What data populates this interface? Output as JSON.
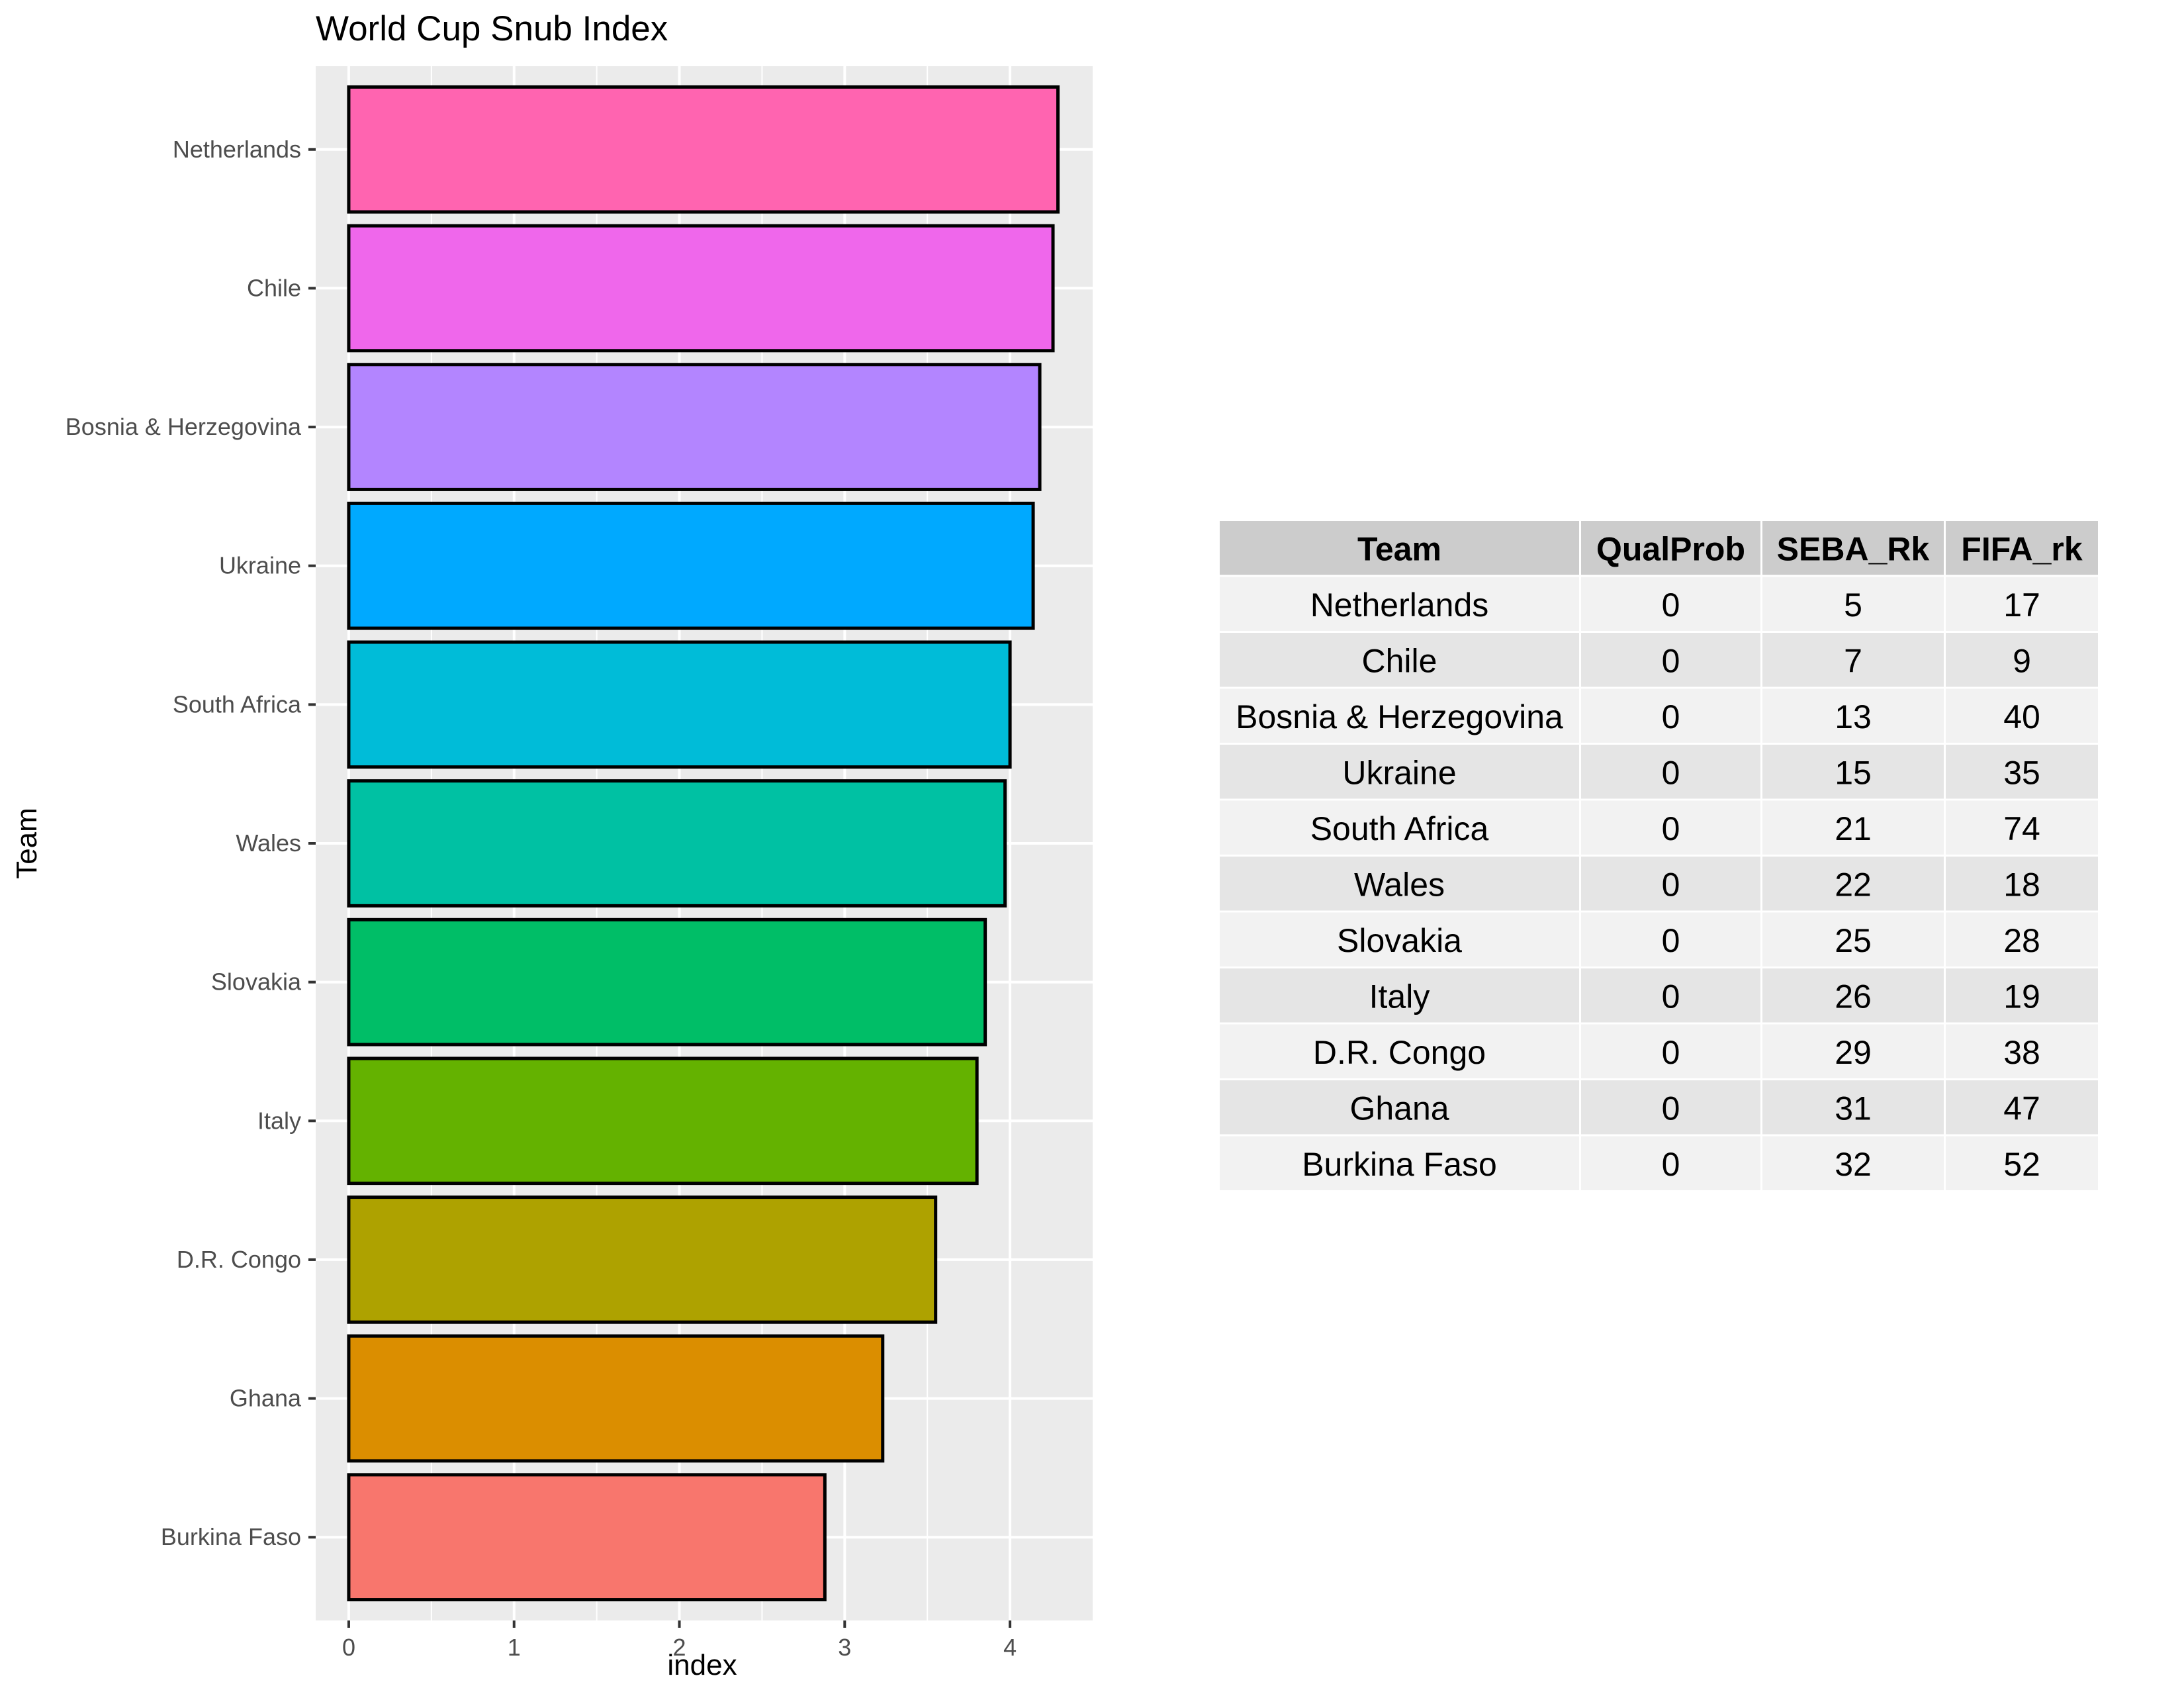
{
  "chart_data": {
    "type": "bar",
    "orientation": "horizontal",
    "title": "World Cup Snub Index",
    "xlabel": "index",
    "ylabel": "Team",
    "xlim": [
      -0.2,
      4.5
    ],
    "x_ticks": [
      0,
      1,
      2,
      3,
      4
    ],
    "grid": true,
    "legend": "none",
    "categories": [
      "Netherlands",
      "Chile",
      "Bosnia & Herzegovina",
      "Ukraine",
      "South Africa",
      "Wales",
      "Slovakia",
      "Italy",
      "D.R. Congo",
      "Ghana",
      "Burkina Faso"
    ],
    "values": [
      4.29,
      4.26,
      4.18,
      4.14,
      4.0,
      3.97,
      3.85,
      3.8,
      3.55,
      3.23,
      2.88
    ],
    "colors": [
      "#FF64B0",
      "#EF67EB",
      "#B385FF",
      "#00A9FF",
      "#00BCD8",
      "#00C1A3",
      "#00BE67",
      "#64B200",
      "#AEA200",
      "#DB8E00",
      "#F8766D"
    ]
  },
  "table": {
    "columns": [
      "Team",
      "QualProb",
      "SEBA_Rk",
      "FIFA_rk"
    ],
    "rows": [
      [
        "Netherlands",
        "0",
        "5",
        "17"
      ],
      [
        "Chile",
        "0",
        "7",
        "9"
      ],
      [
        "Bosnia & Herzegovina",
        "0",
        "13",
        "40"
      ],
      [
        "Ukraine",
        "0",
        "15",
        "35"
      ],
      [
        "South Africa",
        "0",
        "21",
        "74"
      ],
      [
        "Wales",
        "0",
        "22",
        "18"
      ],
      [
        "Slovakia",
        "0",
        "25",
        "28"
      ],
      [
        "Italy",
        "0",
        "26",
        "19"
      ],
      [
        "D.R. Congo",
        "0",
        "29",
        "38"
      ],
      [
        "Ghana",
        "0",
        "31",
        "47"
      ],
      [
        "Burkina Faso",
        "0",
        "32",
        "52"
      ]
    ]
  }
}
